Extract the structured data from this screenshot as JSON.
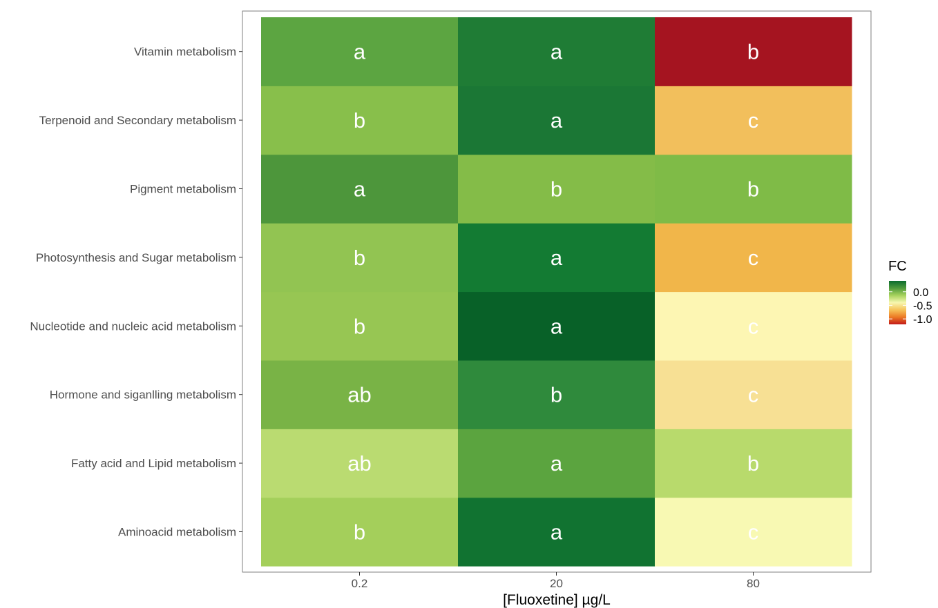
{
  "chart_data": {
    "type": "heatmap",
    "title": "",
    "xlabel": "[Fluoxetine] µg/L",
    "ylabel": "",
    "x": [
      "0.2",
      "20",
      "80"
    ],
    "y": [
      "Aminoacid metabolism",
      "Fatty acid and Lipid metabolism",
      "Hormone and siganlling metabolism",
      "Nucleotide and nucleic acid metabolism",
      "Photosynthesis and Sugar metabolism",
      "Pigment metabolism",
      "Terpenoid and Secondary metabolism",
      "Vitamin metabolism"
    ],
    "values": [
      [
        0.08,
        0.3,
        -0.38
      ],
      [
        0.05,
        0.18,
        0.05
      ],
      [
        0.15,
        0.25,
        -0.5
      ],
      [
        0.09,
        0.35,
        -0.4
      ],
      [
        0.1,
        0.3,
        -0.7
      ],
      [
        0.2,
        0.12,
        0.12
      ],
      [
        0.11,
        0.28,
        -0.65
      ],
      [
        0.18,
        0.27,
        -1.1
      ]
    ],
    "cell_colors": [
      [
        "#a4cf5b",
        "#117331",
        "#f8f9b3"
      ],
      [
        "#badb71",
        "#5ba43f",
        "#b8da6c"
      ],
      [
        "#79b346",
        "#2f8a3c",
        "#f7e094"
      ],
      [
        "#97c653",
        "#086128",
        "#fdf6b3"
      ],
      [
        "#92c452",
        "#137b33",
        "#f1b64a"
      ],
      [
        "#4d963b",
        "#84bc48",
        "#7fbb47"
      ],
      [
        "#88bf4b",
        "#1b7735",
        "#f2bf5c"
      ],
      [
        "#5ca541",
        "#1f7c35",
        "#a51420"
      ]
    ],
    "annotations": [
      [
        "b",
        "a",
        "c"
      ],
      [
        "ab",
        "a",
        "b"
      ],
      [
        "ab",
        "b",
        "c"
      ],
      [
        "b",
        "a",
        "c"
      ],
      [
        "b",
        "a",
        "c"
      ],
      [
        "a",
        "b",
        "b"
      ],
      [
        "b",
        "a",
        "c"
      ],
      [
        "a",
        "a",
        "b"
      ]
    ],
    "legend": {
      "title": "FC",
      "position": "right",
      "ticks": [
        0.0,
        -0.5,
        -1.0
      ],
      "tick_labels": [
        "0.0",
        "-0.5",
        "-1.0"
      ],
      "range": [
        -1.2,
        0.4
      ],
      "colors_top_to_bottom": [
        "#0b6b2e",
        "#4f9a3c",
        "#a6d25d",
        "#f7f7b0",
        "#f6c35a",
        "#ec7a24",
        "#c21a1a"
      ]
    },
    "grid": false
  }
}
